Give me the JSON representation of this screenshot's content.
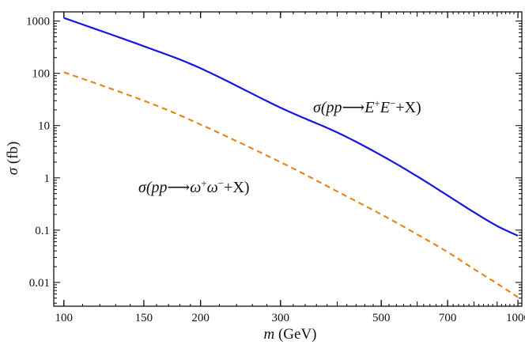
{
  "chart_data": {
    "type": "line",
    "x_scale": "log",
    "y_scale": "log",
    "xlim": [
      95,
      1020
    ],
    "ylim": [
      0.0035,
      1500
    ],
    "grid": false,
    "xlabel": {
      "var": "m",
      "unit": "(GeV)"
    },
    "ylabel": {
      "var": "σ",
      "unit": "(fb)"
    },
    "x_ticks": [
      {
        "value": 100,
        "label": "100"
      },
      {
        "value": 150,
        "label": "150"
      },
      {
        "value": 200,
        "label": "200"
      },
      {
        "value": 300,
        "label": "300"
      },
      {
        "value": 500,
        "label": "500"
      },
      {
        "value": 700,
        "label": "700"
      },
      {
        "value": 1000,
        "label": "1000"
      }
    ],
    "y_ticks": [
      {
        "value": 0.01,
        "label": "0.01"
      },
      {
        "value": 0.1,
        "label": "0.1"
      },
      {
        "value": 1,
        "label": "1"
      },
      {
        "value": 10,
        "label": "10"
      },
      {
        "value": 100,
        "label": "100"
      },
      {
        "value": 1000,
        "label": "1000"
      }
    ],
    "series": [
      {
        "name": "σ(pp⟶E⁺E⁻+X)",
        "color": "#1515e6",
        "dash": "solid",
        "x": [
          100,
          150,
          200,
          300,
          400,
          500,
          600,
          700,
          800,
          900,
          1000
        ],
        "y": [
          1150,
          330,
          125,
          22,
          7.4,
          2.7,
          1.07,
          0.46,
          0.22,
          0.12,
          0.078
        ]
      },
      {
        "name": "σ(pp⟶ω⁺ω⁻+X)",
        "color": "#e8861a",
        "dash": "dashed",
        "x": [
          100,
          150,
          200,
          300,
          400,
          500,
          600,
          700,
          800,
          900,
          1000
        ],
        "y": [
          105,
          30,
          10.5,
          2.0,
          0.55,
          0.2,
          0.083,
          0.038,
          0.018,
          0.0095,
          0.0052
        ]
      }
    ],
    "annotations": [
      {
        "series": 0,
        "pre": "σ(",
        "pp": "pp",
        "arrow": "⟶",
        "particle": "E",
        "sup1": "+",
        "particle2": "E",
        "sup2": "−",
        "post": "+X)"
      },
      {
        "series": 1,
        "pre": "σ(",
        "pp": "pp",
        "arrow": "⟶",
        "particle": "ω",
        "sup1": "+",
        "particle2": "ω",
        "sup2": "−",
        "post": "+X)"
      }
    ]
  }
}
